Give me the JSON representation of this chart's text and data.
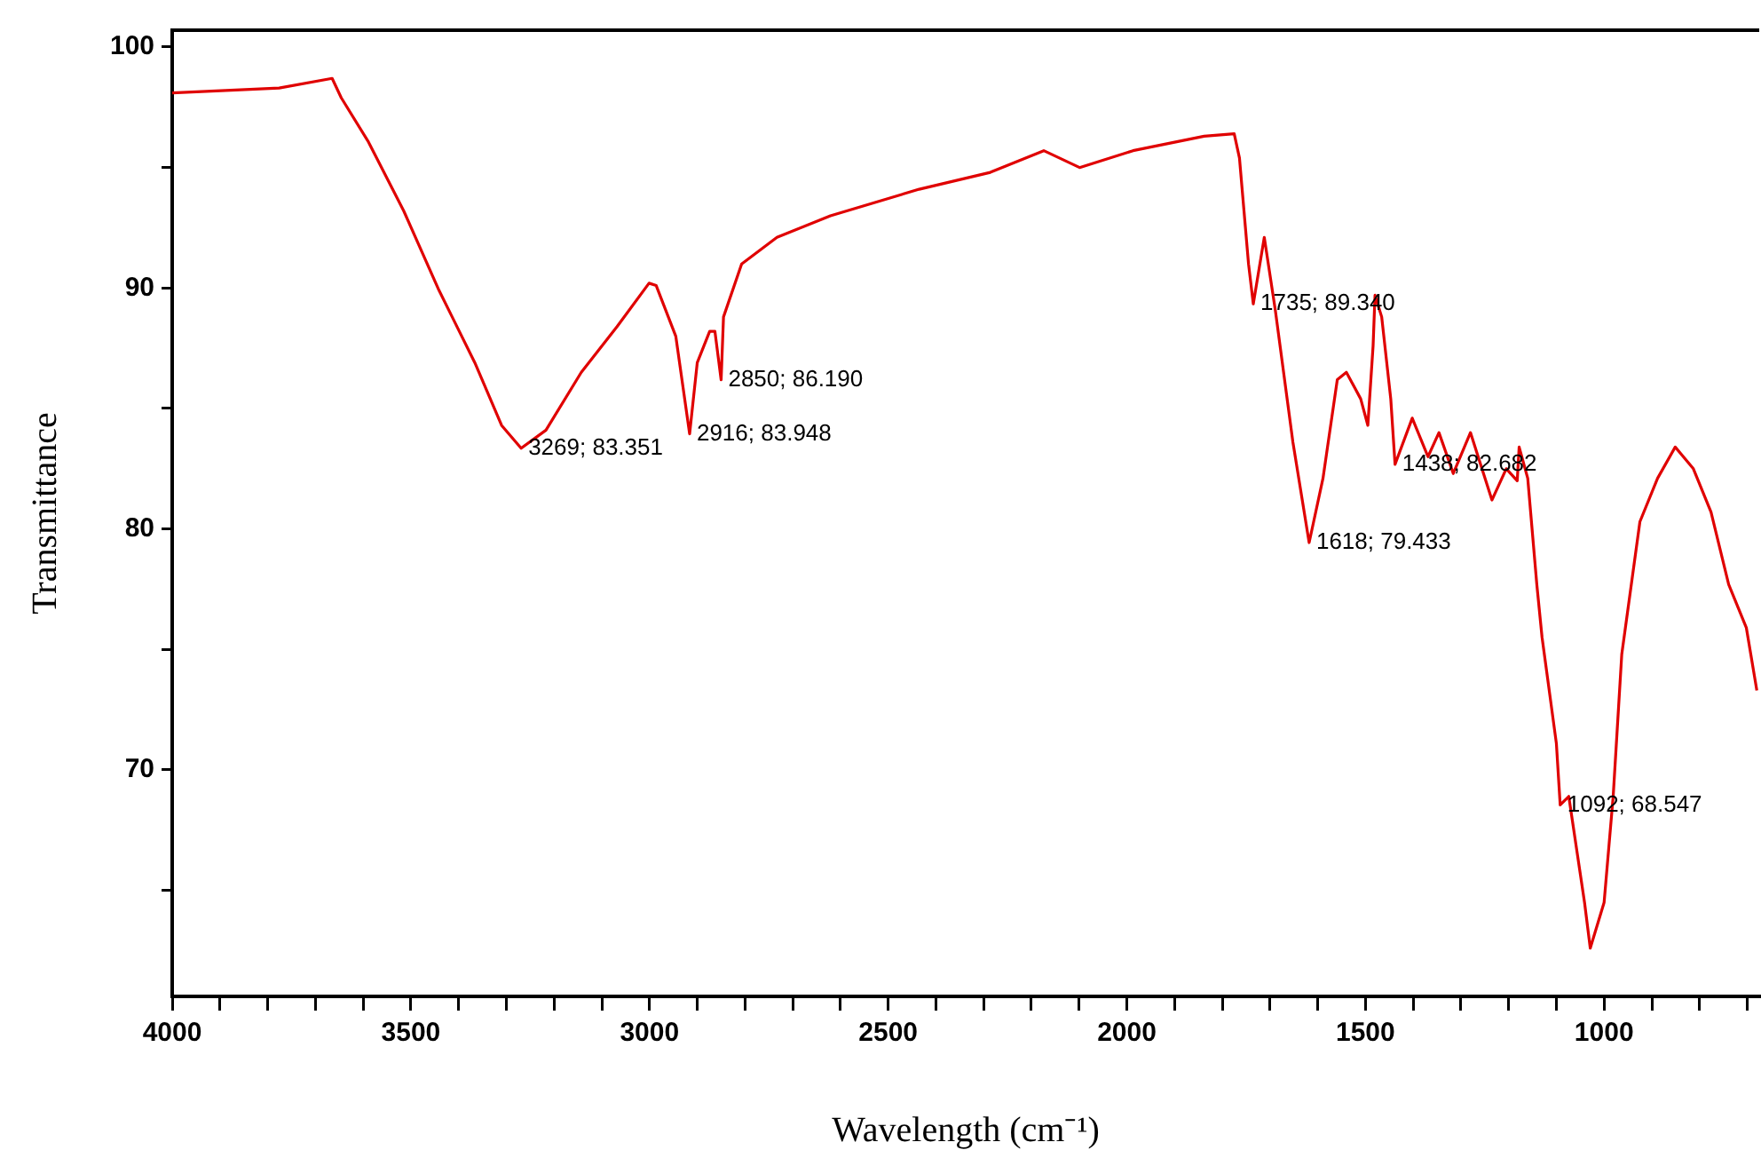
{
  "chart_data": {
    "type": "line",
    "xlabel": "Wavelength (cm⁻¹)",
    "ylabel": "Transmittance",
    "grid": false,
    "legend": false,
    "marker": "none",
    "line_style": "solid",
    "xlim": [
      4000,
      675
    ],
    "ylim": [
      60.6,
      100.7
    ],
    "xticks": [
      4000,
      {
        "value": 3900,
        "label": null
      },
      {
        "value": 3800,
        "label": null
      },
      {
        "value": 3700,
        "label": null
      },
      {
        "value": 3600,
        "label": null
      },
      3500,
      {
        "value": 3400,
        "label": null
      },
      {
        "value": 3300,
        "label": null
      },
      {
        "value": 3200,
        "label": null
      },
      {
        "value": 3100,
        "label": null
      },
      3000,
      {
        "value": 2900,
        "label": null
      },
      {
        "value": 2800,
        "label": null
      },
      {
        "value": 2700,
        "label": null
      },
      {
        "value": 2600,
        "label": null
      },
      2500,
      {
        "value": 2400,
        "label": null
      },
      {
        "value": 2300,
        "label": null
      },
      {
        "value": 2200,
        "label": null
      },
      {
        "value": 2100,
        "label": null
      },
      2000,
      {
        "value": 1900,
        "label": null
      },
      {
        "value": 1800,
        "label": null
      },
      {
        "value": 1700,
        "label": null
      },
      {
        "value": 1600,
        "label": null
      },
      1500,
      {
        "value": 1400,
        "label": null
      },
      {
        "value": 1300,
        "label": null
      },
      {
        "value": 1200,
        "label": null
      },
      {
        "value": 1100,
        "label": null
      },
      1000,
      {
        "value": 900,
        "label": null
      },
      {
        "value": 800,
        "label": null
      },
      {
        "value": 700,
        "label": null
      }
    ],
    "yticks": [
      {
        "value": 65,
        "label": null
      },
      70,
      {
        "value": 75,
        "label": null
      },
      80,
      {
        "value": 85,
        "label": null
      },
      90,
      {
        "value": 95,
        "label": null
      },
      100
    ],
    "series": [
      {
        "color": "#e00000",
        "x": [
          4000,
          3888,
          3776,
          3665,
          3646,
          3590,
          3515,
          3441,
          3366,
          3310,
          3269,
          3217,
          3143,
          3068,
          3001,
          2986,
          2945,
          2916,
          2900,
          2874,
          2863,
          2850,
          2845,
          2807,
          2733,
          2621,
          2435,
          2286,
          2174,
          2099,
          1987,
          1838,
          1775,
          1764,
          1745,
          1735,
          1712,
          1689,
          1652,
          1618,
          1589,
          1559,
          1540,
          1510,
          1495,
          1484,
          1480,
          1466,
          1447,
          1438,
          1402,
          1369,
          1346,
          1316,
          1280,
          1235,
          1205,
          1182,
          1178,
          1160,
          1141,
          1130,
          1100,
          1092,
          1074,
          1041,
          1029,
          1000,
          981,
          963,
          925,
          888,
          851,
          813,
          776,
          739,
          702,
          680
        ],
        "values": [
          98.1,
          98.2,
          98.3,
          98.7,
          97.9,
          96.1,
          93.2,
          89.9,
          86.9,
          84.3,
          83.351,
          84.1,
          86.5,
          88.4,
          90.2,
          90.1,
          88.0,
          83.948,
          86.9,
          88.2,
          88.2,
          86.19,
          88.8,
          91.0,
          92.1,
          93.0,
          94.1,
          94.8,
          95.7,
          95.0,
          95.7,
          96.3,
          96.4,
          95.4,
          91.0,
          89.34,
          92.1,
          89.1,
          83.6,
          79.433,
          82.1,
          86.2,
          86.5,
          85.4,
          84.3,
          87.6,
          89.7,
          88.8,
          85.4,
          82.682,
          84.6,
          83.0,
          84.0,
          82.3,
          84.0,
          81.2,
          82.5,
          82.0,
          83.4,
          82.1,
          77.7,
          75.5,
          71.1,
          68.547,
          68.9,
          64.5,
          62.6,
          64.5,
          68.9,
          74.8,
          80.3,
          82.1,
          83.4,
          82.5,
          80.7,
          77.7,
          75.9,
          73.3
        ]
      }
    ],
    "annotations": [
      {
        "text": "3269; 83.351",
        "x": 3269,
        "y": 83.351
      },
      {
        "text": "2916; 83.948",
        "x": 2916,
        "y": 83.948
      },
      {
        "text": "2850; 86.190",
        "x": 2850,
        "y": 86.19
      },
      {
        "text": "1735; 89.340",
        "x": 1735,
        "y": 89.34
      },
      {
        "text": "1618; 79.433",
        "x": 1618,
        "y": 79.433
      },
      {
        "text": "1438; 82.682",
        "x": 1438,
        "y": 82.682
      },
      {
        "text": "1092; 68.547",
        "x": 1092,
        "y": 68.547
      }
    ]
  }
}
